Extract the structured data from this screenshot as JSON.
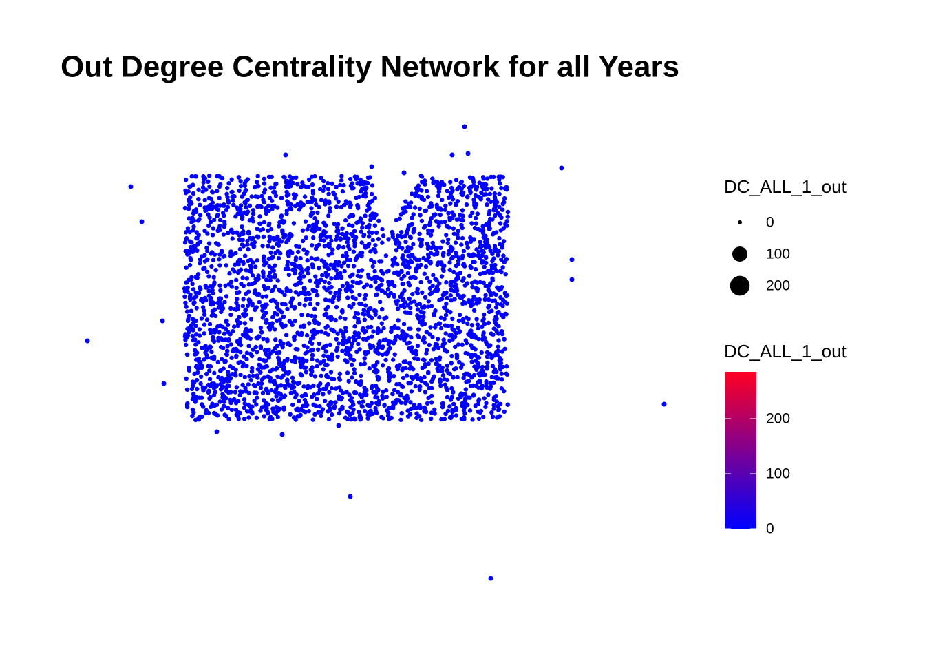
{
  "chart_data": {
    "type": "network",
    "title": "Out Degree Centrality Network for all Years",
    "size_legend": {
      "title": "DC_ALL_1_out",
      "breaks": [
        0,
        100,
        200
      ]
    },
    "color_legend": {
      "title": "DC_ALL_1_out",
      "lim": [
        0,
        285
      ],
      "ticks": [
        0,
        100,
        200
      ],
      "low": "#0000ff",
      "high": "#ff0022"
    }
  }
}
